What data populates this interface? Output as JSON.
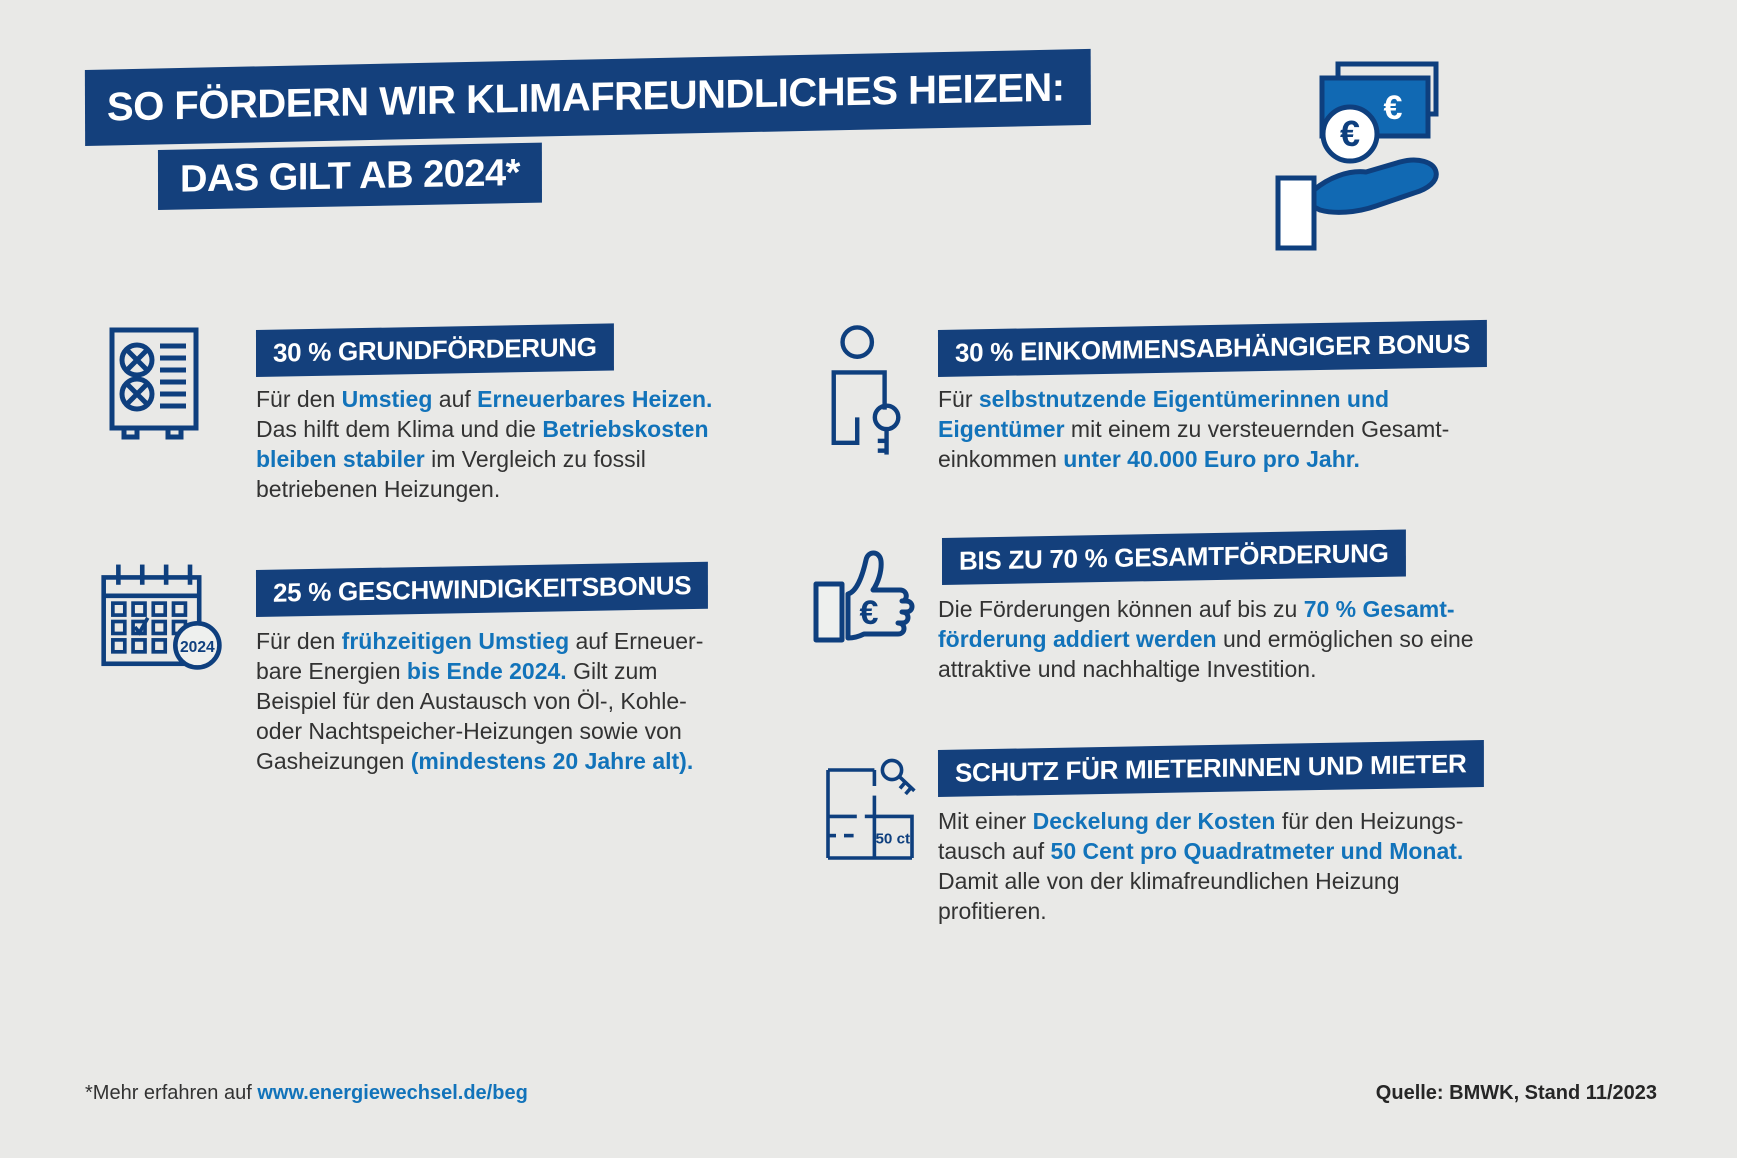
{
  "colors": {
    "background": "#e9e9e7",
    "navy_banner": "#14407c",
    "accent_blue_text": "#1273ba",
    "icon_stroke": "#0e3f7e",
    "icon_fill": "#1169b3",
    "body_text": "#323232"
  },
  "header": {
    "title_line1": "SO FÖRDERN WIR KLIMAFREUNDLICHES HEIZEN:",
    "title_line2": "DAS GILT AB 2024*",
    "icon": {
      "name": "hand-euro-money-icon",
      "coin_label": "€",
      "note_label": "€"
    }
  },
  "sections": [
    {
      "icon": "heat-pump-icon",
      "heading": "30 % GRUNDFÖRDERUNG",
      "body": [
        {
          "t": "Für den "
        },
        {
          "t": "Umstieg",
          "b": true
        },
        {
          "t": " auf "
        },
        {
          "t": "Erneuerbares Heizen.",
          "b": true
        },
        {
          "br": true
        },
        {
          "t": "Das hilft dem Klima und die "
        },
        {
          "t": "Betriebskosten",
          "b": true
        },
        {
          "br": true
        },
        {
          "t": "bleiben stabiler",
          "b": true
        },
        {
          "t": " im Vergleich zu fossil"
        },
        {
          "br": true
        },
        {
          "t": "betriebenen Heizungen."
        }
      ]
    },
    {
      "icon": "calendar-2024-icon",
      "icon_label": "2024",
      "heading": "25 % GESCHWINDIGKEITSBONUS",
      "body": [
        {
          "t": "Für den "
        },
        {
          "t": "frühzeitigen Umstieg",
          "b": true
        },
        {
          "t": " auf Erneuer-"
        },
        {
          "br": true
        },
        {
          "t": "bare Energien "
        },
        {
          "t": "bis Ende 2024.",
          "b": true
        },
        {
          "t": " Gilt zum"
        },
        {
          "br": true
        },
        {
          "t": "Beispiel für den Austausch von Öl-, Kohle-"
        },
        {
          "br": true
        },
        {
          "t": "oder Nachtspeicher-Heizungen sowie von"
        },
        {
          "br": true
        },
        {
          "t": "Gasheizungen "
        },
        {
          "t": "(mindestens 20 Jahre alt).",
          "b": true
        }
      ]
    },
    {
      "icon": "owner-key-icon",
      "heading": "30 % EINKOMMENSABHÄNGIGER BONUS",
      "body": [
        {
          "t": "Für "
        },
        {
          "t": "selbstnutzende Eigentümerinnen und",
          "b": true
        },
        {
          "br": true
        },
        {
          "t": "Eigentümer",
          "b": true
        },
        {
          "t": " mit einem zu versteuernden Gesamt-"
        },
        {
          "br": true
        },
        {
          "t": "einkommen "
        },
        {
          "t": "unter 40.000 Euro pro Jahr.",
          "b": true
        }
      ]
    },
    {
      "icon": "thumbs-up-euro-icon",
      "icon_label": "€",
      "heading": "BIS ZU 70 % GESAMTFÖRDERUNG",
      "body": [
        {
          "t": "Die Förderungen können auf bis zu "
        },
        {
          "t": "70 % Gesamt-",
          "b": true
        },
        {
          "br": true
        },
        {
          "t": "förderung addiert werden",
          "b": true
        },
        {
          "t": " und ermöglichen so eine"
        },
        {
          "br": true
        },
        {
          "t": "attraktive und nachhaltige Investition."
        }
      ]
    },
    {
      "icon": "floorplan-key-icon",
      "icon_label": "50 ct",
      "heading": "SCHUTZ FÜR MIETERINNEN UND MIETER",
      "body": [
        {
          "t": "Mit einer "
        },
        {
          "t": "Deckelung der Kosten",
          "b": true
        },
        {
          "t": " für den Heizungs-"
        },
        {
          "br": true
        },
        {
          "t": "tausch auf "
        },
        {
          "t": "50 Cent pro Quadratmeter und Monat.",
          "b": true
        },
        {
          "br": true
        },
        {
          "t": "Damit alle von der klimafreundlichen Heizung"
        },
        {
          "br": true
        },
        {
          "t": "profitieren."
        }
      ]
    }
  ],
  "footer": {
    "note_prefix": "*Mehr erfahren auf ",
    "note_link": "www.energiewechsel.de/beg",
    "source": "Quelle: BMWK, Stand 11/2023"
  }
}
